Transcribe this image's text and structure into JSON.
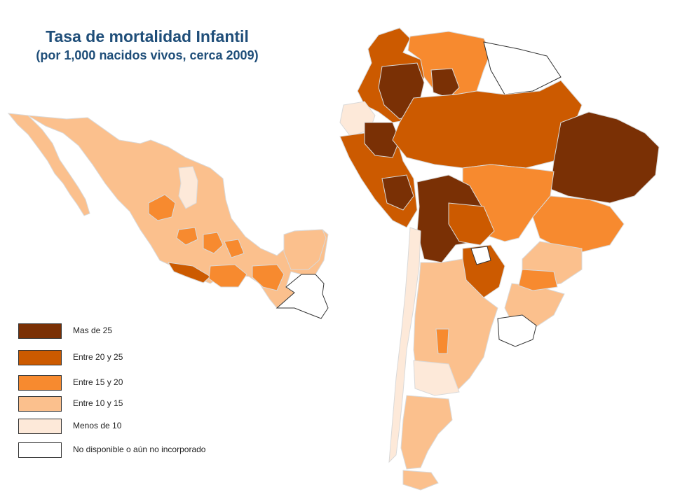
{
  "title": "Tasa de mortalidad Infantil",
  "subtitle": "(por 1,000 nacidos vivos, cerca 2009)",
  "colors": {
    "mas_de_25": "#7a3005",
    "entre_20_25": "#cc5a00",
    "entre_15_20": "#f78a2f",
    "entre_10_15": "#fbc08d",
    "menos_de_10": "#fde9d9",
    "no_disponible": "#ffffff",
    "border": "#c9c9c9",
    "title": "#1f4e79"
  },
  "legend": [
    {
      "label": "Mas de 25",
      "color": "#7a3005"
    },
    {
      "label": "Entre 20 y 25",
      "color": "#cc5a00"
    },
    {
      "label": "Entre 15 y 20",
      "color": "#f78a2f"
    },
    {
      "label": "Entre 10 y 15",
      "color": "#fbc08d"
    },
    {
      "label": "Menos de 10",
      "color": "#fde9d9"
    },
    {
      "label": "No disponible  o aún no incorporado",
      "color": "#ffffff"
    }
  ]
}
